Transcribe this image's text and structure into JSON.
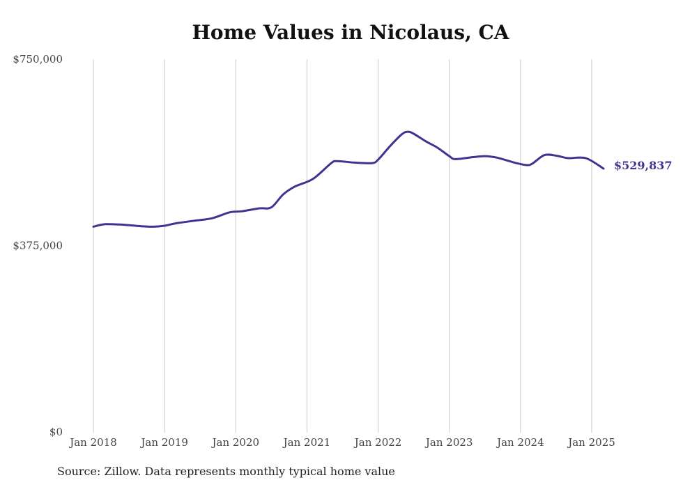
{
  "chart_data": {
    "type": "line",
    "title": "Home Values in Nicolaus, CA",
    "xlabel": "",
    "ylabel": "",
    "ylim": [
      0,
      750000
    ],
    "y_ticks": [
      {
        "value": 0,
        "label": "$0"
      },
      {
        "value": 375000,
        "label": "$375,000"
      },
      {
        "value": 750000,
        "label": "$750,000"
      }
    ],
    "x_range": [
      "2018-01",
      "2025-03"
    ],
    "x_ticks": [
      {
        "date": "2018-01",
        "label": "Jan 2018"
      },
      {
        "date": "2019-01",
        "label": "Jan 2019"
      },
      {
        "date": "2020-01",
        "label": "Jan 2020"
      },
      {
        "date": "2021-01",
        "label": "Jan 2021"
      },
      {
        "date": "2022-01",
        "label": "Jan 2022"
      },
      {
        "date": "2023-01",
        "label": "Jan 2023"
      },
      {
        "date": "2024-01",
        "label": "Jan 2024"
      },
      {
        "date": "2025-01",
        "label": "Jan 2025"
      }
    ],
    "grid": {
      "vertical": true,
      "horizontal": false
    },
    "series": [
      {
        "color": "#3f3591",
        "points": [
          {
            "date": "2018-01",
            "value": 413000
          },
          {
            "date": "2018-03",
            "value": 418000
          },
          {
            "date": "2018-06",
            "value": 417000
          },
          {
            "date": "2018-09",
            "value": 414000
          },
          {
            "date": "2018-11",
            "value": 413000
          },
          {
            "date": "2019-01",
            "value": 415000
          },
          {
            "date": "2019-03",
            "value": 420000
          },
          {
            "date": "2019-06",
            "value": 425000
          },
          {
            "date": "2019-09",
            "value": 430000
          },
          {
            "date": "2019-12",
            "value": 442000
          },
          {
            "date": "2020-02",
            "value": 444000
          },
          {
            "date": "2020-05",
            "value": 450000
          },
          {
            "date": "2020-07",
            "value": 452000
          },
          {
            "date": "2020-09",
            "value": 478000
          },
          {
            "date": "2020-11",
            "value": 494000
          },
          {
            "date": "2021-02",
            "value": 509000
          },
          {
            "date": "2021-05",
            "value": 540000
          },
          {
            "date": "2021-06",
            "value": 545000
          },
          {
            "date": "2021-09",
            "value": 542000
          },
          {
            "date": "2021-12",
            "value": 541000
          },
          {
            "date": "2022-01",
            "value": 548000
          },
          {
            "date": "2022-03",
            "value": 575000
          },
          {
            "date": "2022-05",
            "value": 599000
          },
          {
            "date": "2022-06",
            "value": 604000
          },
          {
            "date": "2022-07",
            "value": 600000
          },
          {
            "date": "2022-09",
            "value": 585000
          },
          {
            "date": "2022-11",
            "value": 572000
          },
          {
            "date": "2023-01",
            "value": 555000
          },
          {
            "date": "2023-02",
            "value": 549000
          },
          {
            "date": "2023-05",
            "value": 553000
          },
          {
            "date": "2023-07",
            "value": 555000
          },
          {
            "date": "2023-09",
            "value": 552000
          },
          {
            "date": "2023-12",
            "value": 542000
          },
          {
            "date": "2024-02",
            "value": 537000
          },
          {
            "date": "2024-03",
            "value": 540000
          },
          {
            "date": "2024-05",
            "value": 557000
          },
          {
            "date": "2024-07",
            "value": 556000
          },
          {
            "date": "2024-09",
            "value": 551000
          },
          {
            "date": "2024-12",
            "value": 551000
          },
          {
            "date": "2025-03",
            "value": 529837
          }
        ]
      }
    ],
    "end_label": "$529,837"
  },
  "source_note": "Source: Zillow. Data represents monthly typical home value"
}
